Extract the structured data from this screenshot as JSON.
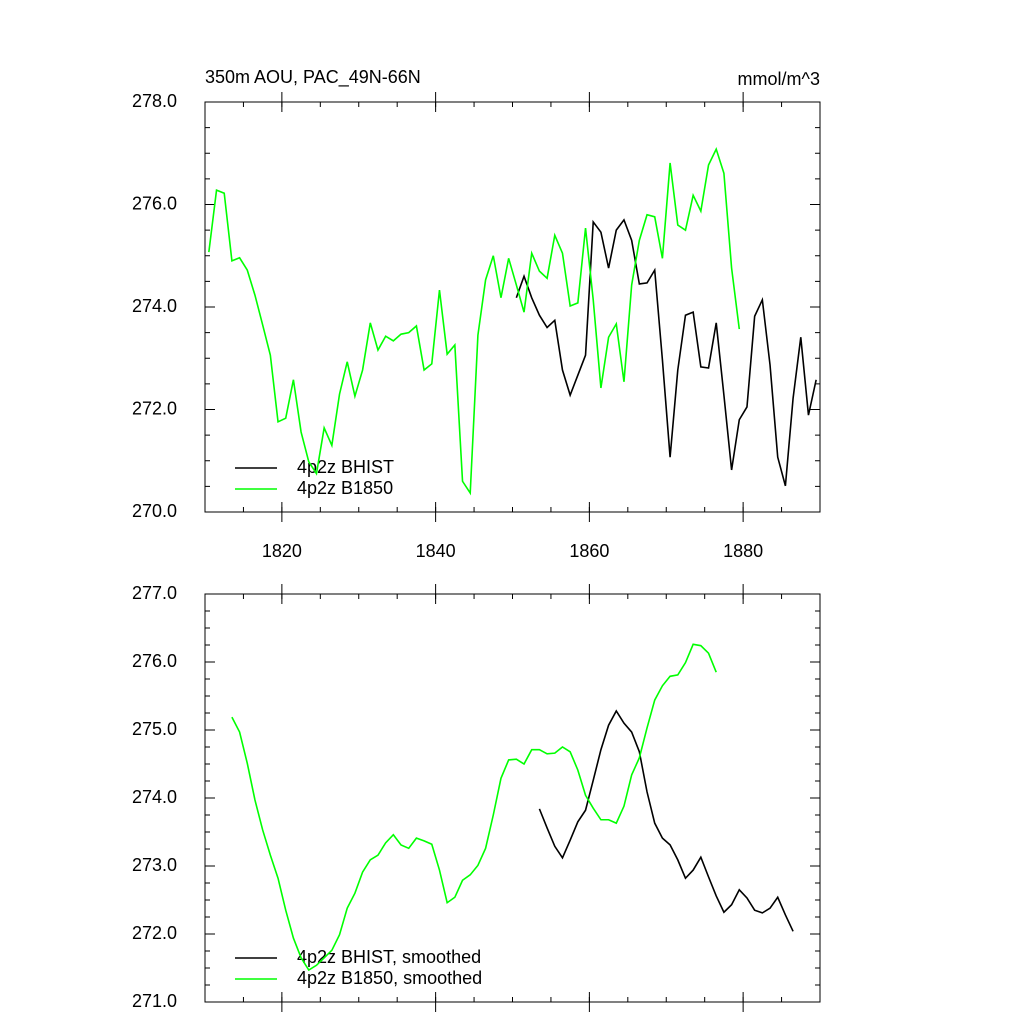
{
  "chart_data": [
    {
      "type": "line",
      "title": "350m AOU, PAC_49N-66N",
      "units": "mmol/m^3",
      "xlim": [
        1810,
        1890
      ],
      "xticks": [
        1820,
        1840,
        1860,
        1880
      ],
      "ylim": [
        270,
        278
      ],
      "yticks": [
        {
          "value": 270,
          "label": "270.0"
        },
        {
          "value": 272,
          "label": "272.0"
        },
        {
          "value": 274,
          "label": "274.0"
        },
        {
          "value": 276,
          "label": "276.0"
        },
        {
          "value": 278,
          "label": "278.0"
        }
      ],
      "legend": "lower left",
      "series": [
        {
          "name": "4p2z BHIST",
          "color": "#000000",
          "x": [
            1850.5,
            1851.5,
            1852.5,
            1853.5,
            1854.5,
            1855.5,
            1856.5,
            1857.5,
            1858.5,
            1859.5,
            1860.5,
            1861.5,
            1862.5,
            1863.5,
            1864.5,
            1865.5,
            1866.5,
            1867.5,
            1868.5,
            1869.5,
            1870.5,
            1871.5,
            1872.5,
            1873.5,
            1874.5,
            1875.5,
            1876.5,
            1877.5,
            1878.5,
            1879.5,
            1880.5,
            1881.5,
            1882.5,
            1883.5,
            1884.5,
            1885.5,
            1886.5,
            1887.5,
            1888.5,
            1889.5
          ],
          "values": [
            274.18,
            274.6,
            274.18,
            273.84,
            273.6,
            273.74,
            272.77,
            272.28,
            272.67,
            273.06,
            275.66,
            275.46,
            274.76,
            275.5,
            275.7,
            275.3,
            274.45,
            274.47,
            274.72,
            272.97,
            271.07,
            272.77,
            273.84,
            273.9,
            272.83,
            272.81,
            273.69,
            272.28,
            270.82,
            271.8,
            272.05,
            273.82,
            274.14,
            272.87,
            271.07,
            270.51,
            272.22,
            273.41,
            271.89,
            272.58
          ]
        },
        {
          "name": "4p2z B1850",
          "color": "#00ff00",
          "x": [
            1810.5,
            1811.5,
            1812.5,
            1813.5,
            1814.5,
            1815.5,
            1816.5,
            1817.5,
            1818.5,
            1819.5,
            1820.5,
            1821.5,
            1822.5,
            1823.5,
            1824.5,
            1825.5,
            1826.5,
            1827.5,
            1828.5,
            1829.5,
            1830.5,
            1831.5,
            1832.5,
            1833.5,
            1834.5,
            1835.5,
            1836.5,
            1837.5,
            1838.5,
            1839.5,
            1840.5,
            1841.5,
            1842.5,
            1843.5,
            1844.5,
            1845.5,
            1846.5,
            1847.5,
            1848.5,
            1849.5,
            1850.5,
            1851.5,
            1852.5,
            1853.5,
            1854.5,
            1855.5,
            1856.5,
            1857.5,
            1858.5,
            1859.5,
            1860.5,
            1861.5,
            1862.5,
            1863.5,
            1864.5,
            1865.5,
            1866.5,
            1867.5,
            1868.5,
            1869.5,
            1870.5,
            1871.5,
            1872.5,
            1873.5,
            1874.5,
            1875.5,
            1876.5,
            1877.5,
            1878.5,
            1879.5
          ],
          "values": [
            275.07,
            276.28,
            276.22,
            274.9,
            274.96,
            274.72,
            274.23,
            273.65,
            273.06,
            271.76,
            271.83,
            272.58,
            271.56,
            270.98,
            270.75,
            271.64,
            271.3,
            272.3,
            272.93,
            272.26,
            272.77,
            273.69,
            273.16,
            273.43,
            273.34,
            273.47,
            273.5,
            273.63,
            272.77,
            272.89,
            274.33,
            273.08,
            273.26,
            270.6,
            270.37,
            273.45,
            274.53,
            275.0,
            274.18,
            274.95,
            274.43,
            273.9,
            275.05,
            274.7,
            274.56,
            275.4,
            275.05,
            274.02,
            274.08,
            275.54,
            274.14,
            272.42,
            273.41,
            273.67,
            272.54,
            274.43,
            275.3,
            275.8,
            275.76,
            274.95,
            276.81,
            275.6,
            275.5,
            276.18,
            275.87,
            276.77,
            277.08,
            276.61,
            274.76,
            273.57
          ]
        }
      ]
    },
    {
      "type": "line",
      "xlim": [
        1810,
        1890
      ],
      "ylim": [
        271,
        277
      ],
      "yticks": [
        {
          "value": 271,
          "label": "271.0"
        },
        {
          "value": 272,
          "label": "272.0"
        },
        {
          "value": 273,
          "label": "273.0"
        },
        {
          "value": 274,
          "label": "274.0"
        },
        {
          "value": 275,
          "label": "275.0"
        },
        {
          "value": 276,
          "label": "276.0"
        },
        {
          "value": 277,
          "label": "277.0"
        }
      ],
      "legend": "lower left",
      "series": [
        {
          "name": "4p2z BHIST, smoothed",
          "color": "#000000",
          "x": [
            1853.5,
            1854.5,
            1855.5,
            1856.5,
            1857.5,
            1858.5,
            1859.5,
            1860.5,
            1861.5,
            1862.5,
            1863.5,
            1864.5,
            1865.5,
            1866.5,
            1867.5,
            1868.5,
            1869.5,
            1870.5,
            1871.5,
            1872.5,
            1873.5,
            1874.5,
            1875.5,
            1876.5,
            1877.5,
            1878.5,
            1879.5,
            1880.5,
            1881.5,
            1882.5,
            1883.5,
            1884.5,
            1885.5,
            1886.5
          ],
          "values": [
            273.84,
            273.56,
            273.29,
            273.12,
            273.38,
            273.65,
            273.82,
            274.26,
            274.71,
            275.07,
            275.28,
            275.1,
            274.97,
            274.68,
            274.09,
            273.63,
            273.41,
            273.31,
            273.09,
            272.82,
            272.94,
            273.13,
            272.84,
            272.56,
            272.32,
            272.43,
            272.65,
            272.53,
            272.35,
            272.31,
            272.38,
            272.54,
            272.28,
            272.04
          ]
        },
        {
          "name": "4p2z B1850, smoothed",
          "color": "#00ff00",
          "x": [
            1813.5,
            1814.5,
            1815.5,
            1816.5,
            1817.5,
            1818.5,
            1819.5,
            1820.5,
            1821.5,
            1822.5,
            1823.5,
            1824.5,
            1825.5,
            1826.5,
            1827.5,
            1828.5,
            1829.5,
            1830.5,
            1831.5,
            1832.5,
            1833.5,
            1834.5,
            1835.5,
            1836.5,
            1837.5,
            1838.5,
            1839.5,
            1840.5,
            1841.5,
            1842.5,
            1843.5,
            1844.5,
            1845.5,
            1846.5,
            1847.5,
            1848.5,
            1849.5,
            1850.5,
            1851.5,
            1852.5,
            1853.5,
            1854.5,
            1855.5,
            1856.5,
            1857.5,
            1858.5,
            1859.5,
            1860.5,
            1861.5,
            1862.5,
            1863.5,
            1864.5,
            1865.5,
            1866.5,
            1867.5,
            1868.5,
            1869.5,
            1870.5,
            1871.5,
            1872.5,
            1873.5,
            1874.5,
            1875.5,
            1876.5
          ],
          "values": [
            275.19,
            274.97,
            274.51,
            273.97,
            273.53,
            273.16,
            272.82,
            272.35,
            271.94,
            271.65,
            271.47,
            271.54,
            271.65,
            271.76,
            271.99,
            272.38,
            272.6,
            272.91,
            273.09,
            273.16,
            273.34,
            273.46,
            273.31,
            273.26,
            273.41,
            273.37,
            273.32,
            272.94,
            272.46,
            272.54,
            272.79,
            272.87,
            273.01,
            273.26,
            273.75,
            274.29,
            274.56,
            274.57,
            274.5,
            274.71,
            274.71,
            274.65,
            274.66,
            274.75,
            274.68,
            274.41,
            274.04,
            273.85,
            273.68,
            273.68,
            273.63,
            273.88,
            274.34,
            274.59,
            275.03,
            275.44,
            275.65,
            275.79,
            275.81,
            275.99,
            276.26,
            276.24,
            276.13,
            275.85
          ]
        }
      ]
    }
  ]
}
